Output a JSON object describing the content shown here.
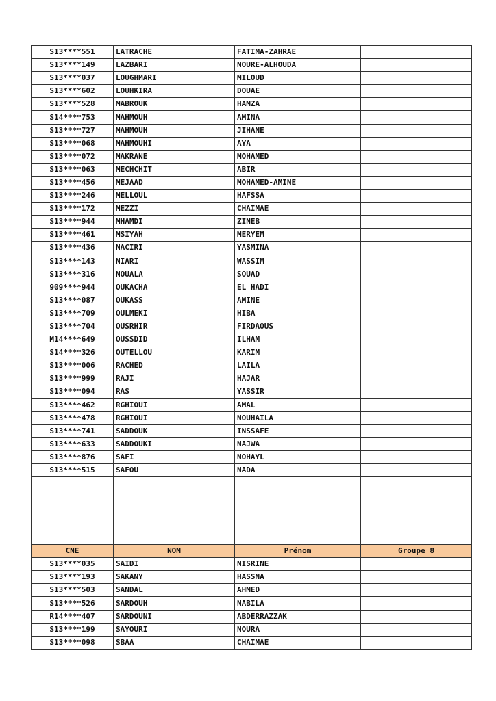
{
  "header": {
    "cne": "CNE",
    "nom": "NOM",
    "prenom": "Prénom",
    "groupe": "Groupe 8"
  },
  "header_color": "#f9c99b",
  "rows_before": [
    [
      "S13****551",
      "LATRACHE",
      "FATIMA-ZAHRAE"
    ],
    [
      "S13****149",
      "LAZBARI",
      "NOURE-ALHOUDA"
    ],
    [
      "S13****037",
      "LOUGHMARI",
      "MILOUD"
    ],
    [
      "S13****602",
      "LOUHKIRA",
      "DOUAE"
    ],
    [
      "S13****528",
      "MABROUK",
      "HAMZA"
    ],
    [
      "S14****753",
      "MAHMOUH",
      "AMINA"
    ],
    [
      "S13****727",
      "MAHMOUH",
      "JIHANE"
    ],
    [
      "S13****068",
      "MAHMOUHI",
      "AYA"
    ],
    [
      "S13****072",
      "MAKRANE",
      "MOHAMED"
    ],
    [
      "S13****063",
      "MECHCHIT",
      "ABIR"
    ],
    [
      "S13****456",
      "MEJAAD",
      "MOHAMED-AMINE"
    ],
    [
      "S13****246",
      "MELLOUL",
      "HAFSSA"
    ],
    [
      "S13****172",
      "MEZZI",
      "CHAIMAE"
    ],
    [
      "S13****944",
      "MHAMDI",
      "ZINEB"
    ],
    [
      "S13****461",
      "MSIYAH",
      "MERYEM"
    ],
    [
      "S13****436",
      "NACIRI",
      "YASMINA"
    ],
    [
      "S13****143",
      "NIARI",
      "WASSIM"
    ],
    [
      "S13****316",
      "NOUALA",
      "SOUAD"
    ],
    [
      "909****944",
      "OUKACHA",
      "EL HADI"
    ],
    [
      "S13****087",
      "OUKASS",
      "AMINE"
    ],
    [
      "S13****709",
      "OULMEKI",
      "HIBA"
    ],
    [
      "S13****704",
      "OUSRHIR",
      "FIRDAOUS"
    ],
    [
      "M14****649",
      "OUSSDID",
      "ILHAM"
    ],
    [
      "S14****326",
      "OUTELLOU",
      "KARIM"
    ],
    [
      "S13****006",
      "RACHED",
      "LAILA"
    ],
    [
      "S13****999",
      "RAJI",
      "HAJAR"
    ],
    [
      "S13****094",
      "RAS",
      "YASSIR"
    ],
    [
      "S13****462",
      "RGHIOUI",
      "AMAL"
    ],
    [
      "S13****478",
      "RGHIOUI",
      "NOUHAILA"
    ],
    [
      "S13****741",
      "SADDOUK",
      "INSSAFE"
    ],
    [
      "S13****633",
      "SADDOUKI",
      "NAJWA"
    ],
    [
      "S13****876",
      "SAFI",
      "NOHAYL"
    ],
    [
      "S13****515",
      "SAFOU",
      "NADA"
    ]
  ],
  "rows_after": [
    [
      "S13****035",
      "SAIDI",
      "NISRINE"
    ],
    [
      "S13****193",
      "SAKANY",
      "HASSNA"
    ],
    [
      "S13****503",
      "SANDAL",
      "AHMED"
    ],
    [
      "S13****526",
      "SARDOUH",
      "NABILA"
    ],
    [
      "R14****407",
      "SARDOUNI",
      "ABDERRAZZAK"
    ],
    [
      "S13****199",
      "SAYOURI",
      "NOURA"
    ],
    [
      "S13****098",
      "SBAA",
      "CHAIMAE"
    ]
  ]
}
